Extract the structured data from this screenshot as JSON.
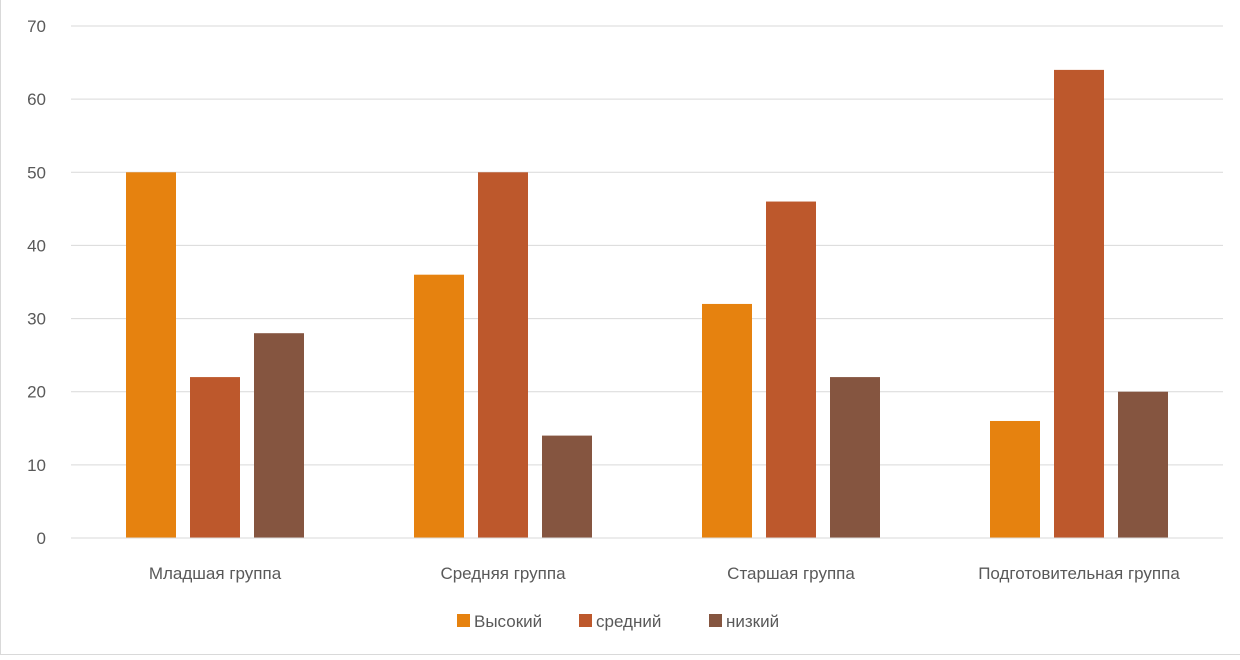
{
  "chart_data": {
    "type": "bar",
    "categories": [
      "Младшая группа",
      "Средняя группа",
      "Старшая группа",
      "Подготовительная группа"
    ],
    "series": [
      {
        "name": "Высокий",
        "values": [
          50,
          36,
          32,
          16
        ],
        "color": "#e6820f"
      },
      {
        "name": "средний",
        "values": [
          22,
          50,
          46,
          64
        ],
        "color": "#bd582c"
      },
      {
        "name": "низкий",
        "values": [
          28,
          14,
          22,
          20
        ],
        "color": "#855540"
      }
    ],
    "ylim": [
      0,
      70
    ],
    "yticks": [
      0,
      10,
      20,
      30,
      40,
      50,
      60,
      70
    ],
    "grid": true,
    "legend": "bottom",
    "gridColor": "#d9d9d9",
    "textColor": "#595959"
  }
}
